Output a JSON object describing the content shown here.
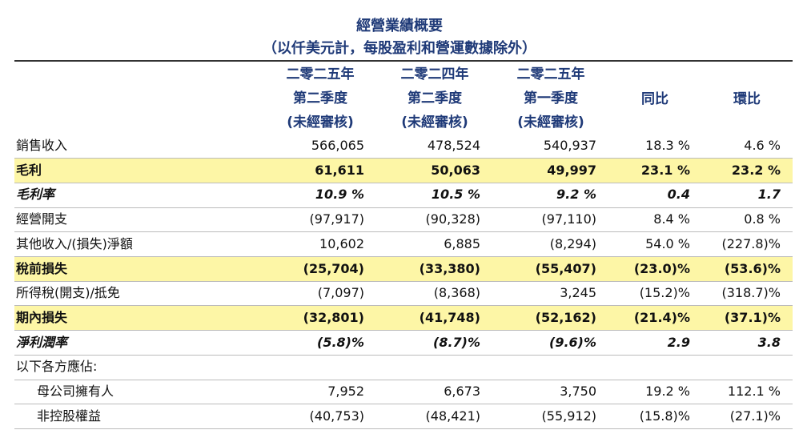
{
  "header": {
    "title": "經營業績概要",
    "subtitle": "（以仟美元計，每股盈利和營運數據除外）"
  },
  "table": {
    "columns": [
      [
        "二零二五年",
        "第二季度",
        "(未經審核)"
      ],
      [
        "二零二四年",
        "第二季度",
        "(未經審核)"
      ],
      [
        "二零二五年",
        "第一季度",
        "(未經審核)"
      ],
      [
        "同比"
      ],
      [
        "環比"
      ]
    ],
    "rows": [
      [
        "銷售收入",
        "566,065",
        "478,524",
        "540,937",
        "18.3 %",
        "4.6 %"
      ],
      [
        "毛利",
        "61,611",
        "50,063",
        "49,997",
        "23.1 %",
        "23.2 %"
      ],
      [
        "毛利率",
        "10.9 %",
        "10.5 %",
        "9.2 %",
        "0.4",
        "1.7"
      ],
      [
        "經營開支",
        "(97,917)",
        "(90,328)",
        "(97,110)",
        "8.4 %",
        "0.8 %"
      ],
      [
        "其他收入/(損失)淨額",
        "10,602",
        "6,885",
        "(8,294)",
        "54.0 %",
        "(227.8)%"
      ],
      [
        "稅前損失",
        "(25,704)",
        "(33,380)",
        "(55,407)",
        "(23.0)%",
        "(53.6)%"
      ],
      [
        "所得稅(開支)/抵免",
        "(7,097)",
        "(8,368)",
        "3,245",
        "(15.2)%",
        "(318.7)%"
      ],
      [
        "期內損失",
        "(32,801)",
        "(41,748)",
        "(52,162)",
        "(21.4)%",
        "(37.1)%"
      ],
      [
        "淨利潤率",
        "(5.8)%",
        "(8.7)%",
        "(9.6)%",
        "2.9",
        "3.8"
      ],
      [
        "以下各方應佔:"
      ],
      [
        "母公司擁有人",
        "7,952",
        "6,673",
        "3,750",
        "19.2 %",
        "112.1 %"
      ],
      [
        "非控股權益",
        "(40,753)",
        "(48,421)",
        "(55,912)",
        "(15.8)%",
        "(27.1)%"
      ]
    ]
  }
}
